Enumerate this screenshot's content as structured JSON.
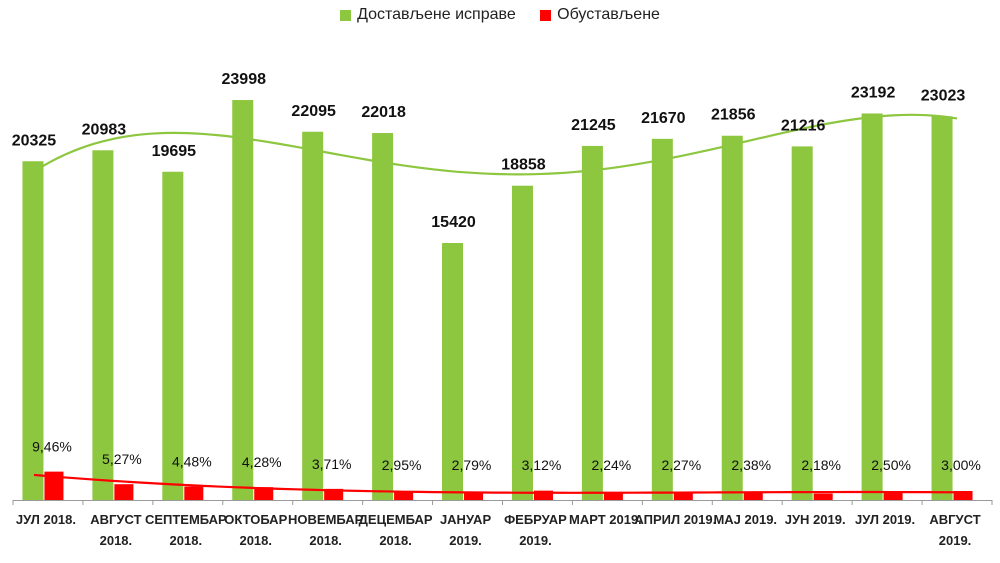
{
  "chart_data": {
    "type": "bar",
    "categories": [
      [
        "ЈУЛ 2018."
      ],
      [
        "АВГУСТ",
        "2018."
      ],
      [
        "СЕПТЕМБАР",
        "2018."
      ],
      [
        "ОКТОБАР",
        "2018."
      ],
      [
        "НОВЕМБАР",
        "2018."
      ],
      [
        "ДЕЦЕМБАР",
        "2018."
      ],
      [
        "ЈАНУАР",
        "2019."
      ],
      [
        "ФЕБРУАР",
        "2019."
      ],
      [
        "МАРТ 2019."
      ],
      [
        "АПРИЛ 2019."
      ],
      [
        "МАЈ 2019."
      ],
      [
        "ЈУН 2019."
      ],
      [
        "ЈУЛ 2019."
      ],
      [
        "АВГУСТ",
        "2019."
      ]
    ],
    "series": [
      {
        "name": "Достављене исправе",
        "color": "#8dc63f",
        "values": [
          20325,
          20983,
          19695,
          23998,
          22095,
          22018,
          15420,
          18858,
          21245,
          21670,
          21856,
          21216,
          23192,
          23023
        ],
        "labels": [
          "20325",
          "20983",
          "19695",
          "23998",
          "22095",
          "22018",
          "15420",
          "18858",
          "21245",
          "21670",
          "21856",
          "21216",
          "23192",
          "23023"
        ],
        "trendline": true
      },
      {
        "name": "Обустављене",
        "color": "#ff0000",
        "values": [
          9.46,
          5.27,
          4.48,
          4.28,
          3.71,
          2.95,
          2.79,
          3.12,
          2.24,
          2.27,
          2.38,
          2.18,
          2.5,
          3.0
        ],
        "labels": [
          "9,46%",
          "5,27%",
          "4,48%",
          "4,28%",
          "3,71%",
          "2,95%",
          "2,79%",
          "3,12%",
          "2,24%",
          "2,27%",
          "2,38%",
          "2,18%",
          "2,50%",
          "3,00%"
        ],
        "trendline": true
      }
    ],
    "legend_position": "top",
    "grid": false
  }
}
